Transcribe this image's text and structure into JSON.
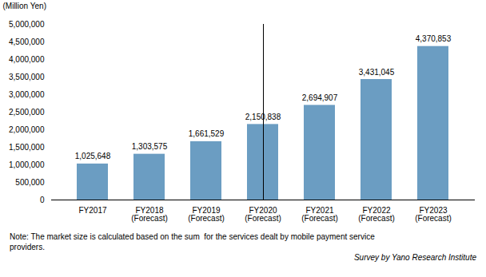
{
  "chart_data": {
    "type": "bar",
    "categories": [
      "FY2017",
      "FY2018\n(Forecast)",
      "FY2019\n(Forecast)",
      "FY2020\n(Forecast)",
      "FY2021\n(Forecast)",
      "FY2022\n(Forecast)",
      "FY2023\n(Forecast)"
    ],
    "values": [
      1025648,
      1303575,
      1661529,
      2150838,
      2694907,
      3431045,
      4370853
    ],
    "value_labels": [
      "1,025,648",
      "1,303,575",
      "1,661,529",
      "2,150,838",
      "2,694,907",
      "3,431,045",
      "4,370,853"
    ],
    "data_labels": true,
    "color": "#6B9DC2",
    "ylabel": "(Million Yen)",
    "ylim": [
      0,
      5000000
    ],
    "yticks": [
      0,
      {
        "value": 500000,
        "label": "500,000"
      },
      {
        "value": 1000000,
        "label": "1,000,000"
      },
      {
        "value": 1500000,
        "label": "1,500,000"
      },
      {
        "value": 2000000,
        "label": "2,000,000"
      },
      {
        "value": 2500000,
        "label": "2,500,000"
      },
      {
        "value": 3000000,
        "label": "3,000,000"
      },
      {
        "value": 3500000,
        "label": "3,500,000"
      },
      {
        "value": 4000000,
        "label": "4,000,000"
      },
      {
        "value": 4500000,
        "label": "4,500,000"
      },
      {
        "value": 5000000,
        "label": "5,000,000"
      }
    ],
    "grid": false,
    "notes": [
      "Note: The market size is calculated based on the sum  for the services dealt by mobile payment service",
      "providers."
    ],
    "source": "Survey by Yano Research Institute"
  }
}
